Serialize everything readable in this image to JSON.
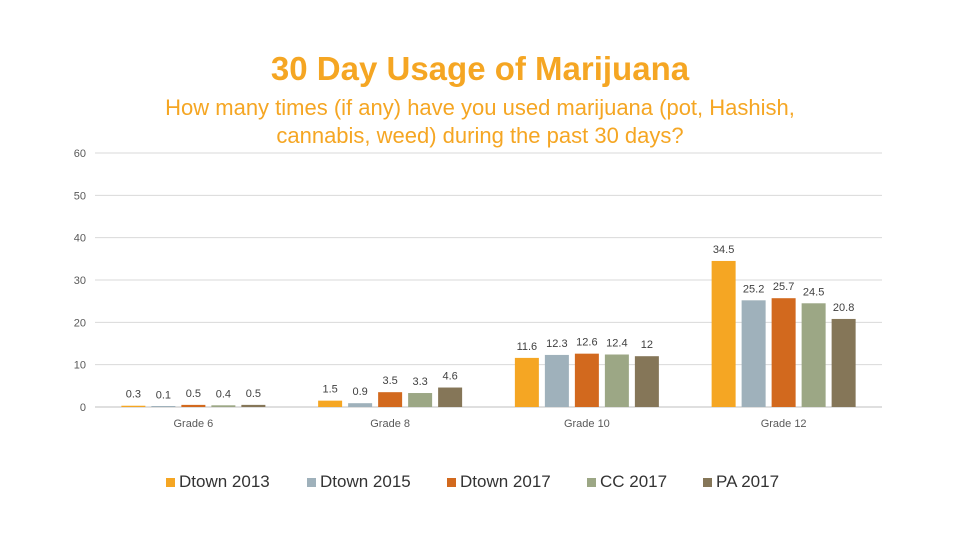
{
  "chart_data": {
    "type": "bar",
    "title": "30 Day Usage of Marijuana",
    "subtitle": "How many times (if any) have you used marijuana (pot, Hashish, cannabis, weed) during the past 30 days?",
    "categories": [
      "Grade 6",
      "Grade 8",
      "Grade 10",
      "Grade 12"
    ],
    "series": [
      {
        "name": "Dtown 2013",
        "color": "#F5A623",
        "values": [
          0.3,
          1.5,
          11.6,
          34.5
        ]
      },
      {
        "name": "Dtown 2015",
        "color": "#9FB1BB",
        "values": [
          0.1,
          0.9,
          12.3,
          25.2
        ]
      },
      {
        "name": "Dtown 2017",
        "color": "#D2691E",
        "values": [
          0.5,
          3.5,
          12.6,
          25.7
        ]
      },
      {
        "name": "CC 2017",
        "color": "#9CA785",
        "values": [
          0.4,
          3.3,
          12.4,
          24.5
        ]
      },
      {
        "name": "PA 2017",
        "color": "#857658",
        "values": [
          0.5,
          4.6,
          12,
          20.8
        ]
      }
    ],
    "labels": [
      [
        "0.3",
        "1.5",
        "11.6",
        "34.5"
      ],
      [
        "0.1",
        "0.9",
        "12.3",
        "25.2"
      ],
      [
        "0.5",
        "3.5",
        "12.6",
        "25.7"
      ],
      [
        "0.4",
        "3.3",
        "12.4",
        "24.5"
      ],
      [
        "0.5",
        "4.6",
        "12",
        "20.8"
      ]
    ],
    "yticks": [
      "0",
      "10",
      "20",
      "30",
      "40",
      "50",
      "60"
    ],
    "ylim": [
      0,
      60
    ],
    "grid": true,
    "legend": "bottom",
    "xlabel": "",
    "ylabel": ""
  }
}
